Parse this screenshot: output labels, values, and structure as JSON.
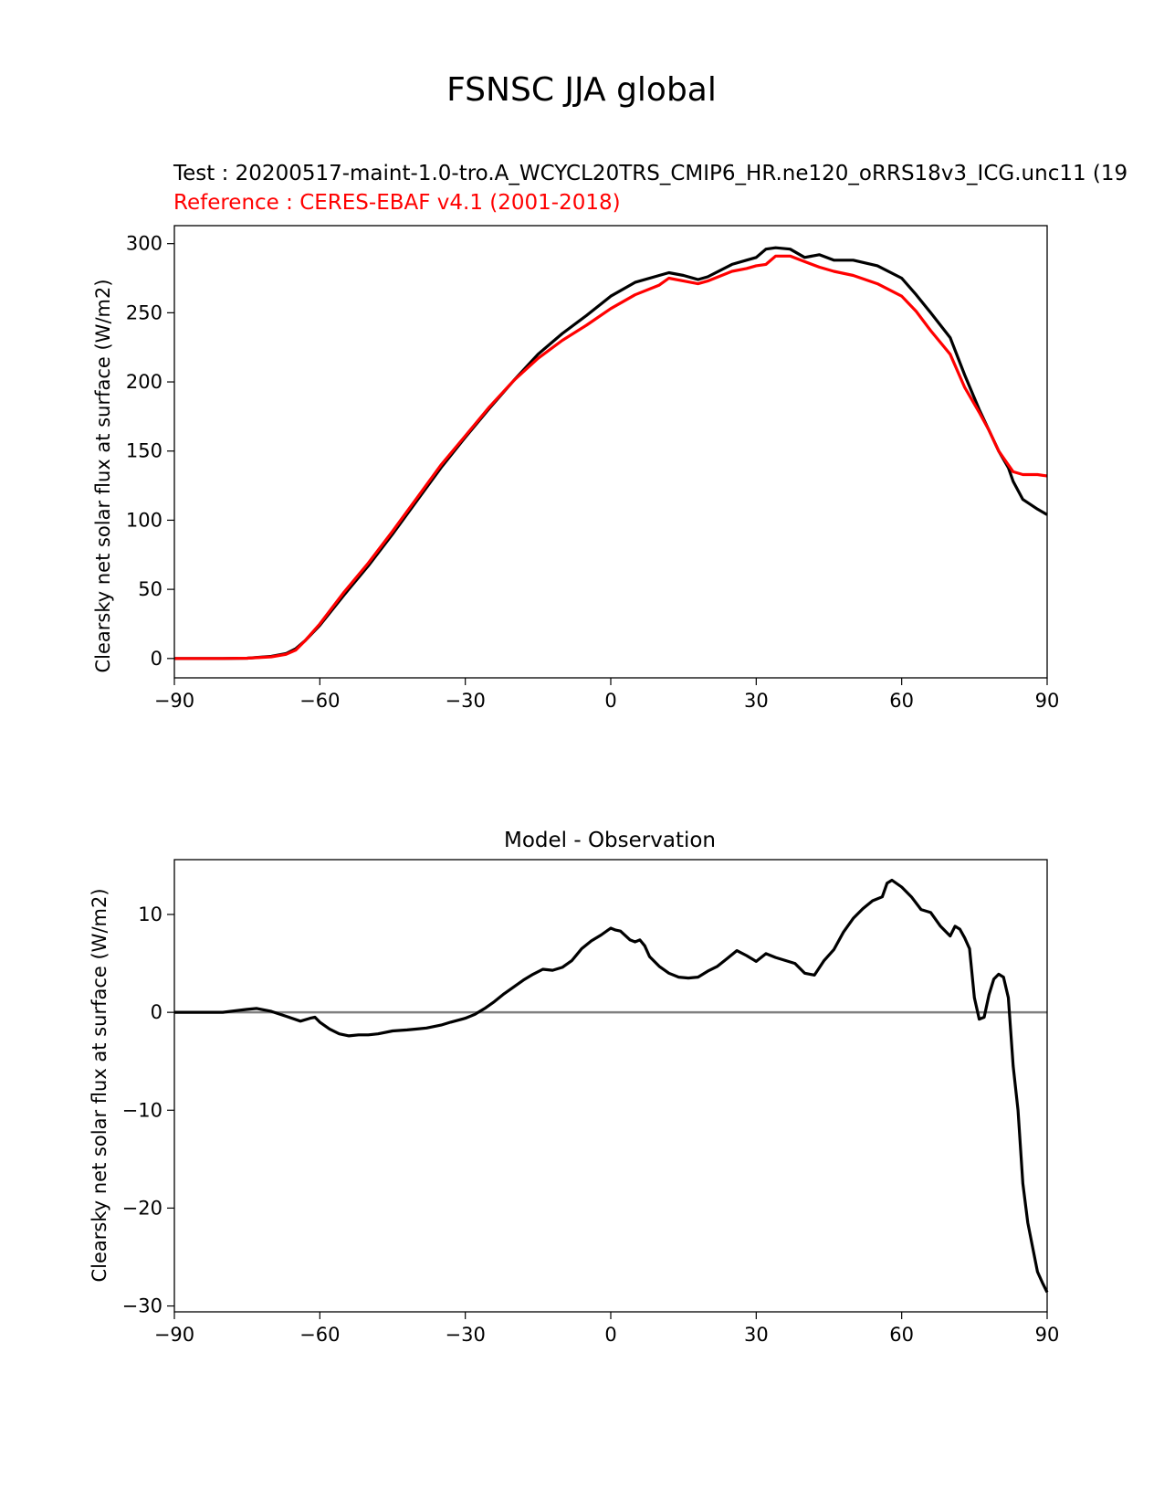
{
  "figure": {
    "suptitle": "FSNSC JJA global",
    "colors": {
      "test": "#000000",
      "reference": "#ff0000",
      "zero_line": "#808080"
    }
  },
  "chart_data": [
    {
      "type": "line",
      "test_label": "Test : 20200517-maint-1.0-tro.A_WCYCL20TRS_CMIP6_HR.ne120_oRRS18v3_ICG.unc11 (19",
      "reference_label": "Reference : CERES-EBAF v4.1 (2001-2018)",
      "xlabel": "",
      "ylabel": "Clearsky net solar flux at surface (W/m2)",
      "xlim": [
        -90,
        90
      ],
      "ylim": [
        -14,
        313
      ],
      "xticks": [
        -90,
        -60,
        -30,
        0,
        30,
        60,
        90
      ],
      "yticks": [
        0,
        50,
        100,
        150,
        200,
        250,
        300
      ],
      "grid": false,
      "series": [
        {
          "role": "test",
          "x": [
            -90,
            -80,
            -75,
            -70,
            -67,
            -65,
            -63,
            -60,
            -55,
            -50,
            -45,
            -40,
            -35,
            -30,
            -25,
            -20,
            -15,
            -10,
            -5,
            0,
            5,
            10,
            12,
            15,
            18,
            20,
            25,
            28,
            30,
            32,
            34,
            37,
            40,
            43,
            46,
            50,
            55,
            60,
            63,
            66,
            70,
            73,
            76,
            78,
            80,
            82,
            83,
            85,
            88,
            90
          ],
          "y": [
            0,
            0,
            0.2,
            1.5,
            3.5,
            7,
            13,
            24,
            46,
            67,
            90,
            114,
            138,
            160,
            181,
            201,
            220,
            235,
            248,
            262,
            272,
            277,
            279,
            277,
            274,
            276,
            285,
            288,
            290,
            296,
            297,
            296,
            290,
            292,
            288,
            288,
            284,
            275,
            263,
            250,
            232,
            205,
            180,
            165,
            150,
            138,
            128,
            115,
            108,
            104
          ]
        },
        {
          "role": "reference",
          "x": [
            -90,
            -80,
            -75,
            -70,
            -67,
            -65,
            -63,
            -60,
            -55,
            -50,
            -45,
            -40,
            -35,
            -30,
            -25,
            -20,
            -15,
            -10,
            -5,
            0,
            5,
            10,
            12,
            15,
            18,
            20,
            25,
            28,
            30,
            32,
            34,
            37,
            40,
            43,
            46,
            50,
            55,
            60,
            63,
            66,
            70,
            73,
            76,
            78,
            80,
            82,
            83,
            85,
            88,
            90
          ],
          "y": [
            0,
            0,
            0.2,
            1.2,
            3,
            6,
            13,
            25,
            48,
            69,
            92,
            116,
            140,
            161,
            182,
            201,
            217,
            230,
            241,
            253,
            263,
            270,
            275,
            273,
            271,
            273,
            280,
            282,
            284,
            285,
            291,
            291,
            287,
            283,
            280,
            277,
            271,
            262,
            251,
            237,
            220,
            196,
            178,
            165,
            150,
            140,
            135,
            133,
            133,
            132
          ]
        }
      ]
    },
    {
      "type": "line",
      "title": "Model - Observation",
      "xlabel": "",
      "ylabel": "Clearsky net solar flux at surface (W/m2)",
      "xlim": [
        -90,
        90
      ],
      "ylim": [
        -30.6,
        15.6
      ],
      "xticks": [
        -90,
        -60,
        -30,
        0,
        30,
        60,
        90
      ],
      "yticks": [
        -30,
        -20,
        -10,
        0,
        10
      ],
      "grid": false,
      "zero_line": 0,
      "series": [
        {
          "role": "difference",
          "x": [
            -90,
            -80,
            -75,
            -73,
            -70,
            -67,
            -64,
            -62,
            -61,
            -60,
            -58,
            -56,
            -54,
            -52,
            -50,
            -48,
            -45,
            -42,
            -40,
            -38,
            -35,
            -33,
            -30,
            -28,
            -26,
            -24,
            -22,
            -20,
            -18,
            -16,
            -14,
            -12,
            -10,
            -8,
            -6,
            -4,
            -2,
            0,
            1,
            2,
            4,
            5,
            6,
            7,
            8,
            10,
            12,
            14,
            16,
            18,
            20,
            22,
            24,
            26,
            28,
            30,
            32,
            34,
            36,
            38,
            40,
            42,
            44,
            46,
            48,
            50,
            52,
            54,
            56,
            57,
            58,
            60,
            62,
            64,
            66,
            68,
            70,
            71,
            72,
            73,
            74,
            75,
            76,
            77,
            78,
            79,
            80,
            81,
            82,
            83,
            84,
            85,
            86,
            87,
            88,
            89,
            90
          ],
          "y": [
            0,
            0,
            0.3,
            0.4,
            0.1,
            -0.4,
            -0.9,
            -0.6,
            -0.5,
            -1.0,
            -1.7,
            -2.2,
            -2.4,
            -2.3,
            -2.3,
            -2.2,
            -1.9,
            -1.8,
            -1.7,
            -1.6,
            -1.3,
            -1.0,
            -0.6,
            -0.2,
            0.4,
            1.1,
            1.9,
            2.6,
            3.3,
            3.9,
            4.4,
            4.3,
            4.6,
            5.3,
            6.5,
            7.3,
            7.9,
            8.6,
            8.4,
            8.3,
            7.4,
            7.2,
            7.4,
            6.8,
            5.7,
            4.7,
            4.0,
            3.6,
            3.5,
            3.6,
            4.2,
            4.7,
            5.5,
            6.3,
            5.8,
            5.2,
            6.0,
            5.6,
            5.3,
            5.0,
            4.0,
            3.8,
            5.3,
            6.4,
            8.2,
            9.6,
            10.6,
            11.4,
            11.8,
            13.2,
            13.5,
            12.8,
            11.8,
            10.5,
            10.2,
            8.8,
            7.8,
            8.8,
            8.5,
            7.6,
            6.5,
            1.5,
            -0.7,
            -0.5,
            1.8,
            3.4,
            3.9,
            3.6,
            1.5,
            -5.5,
            -10.0,
            -17.5,
            -21.5,
            -24.0,
            -26.5,
            -27.6,
            -28.6
          ]
        }
      ]
    }
  ]
}
